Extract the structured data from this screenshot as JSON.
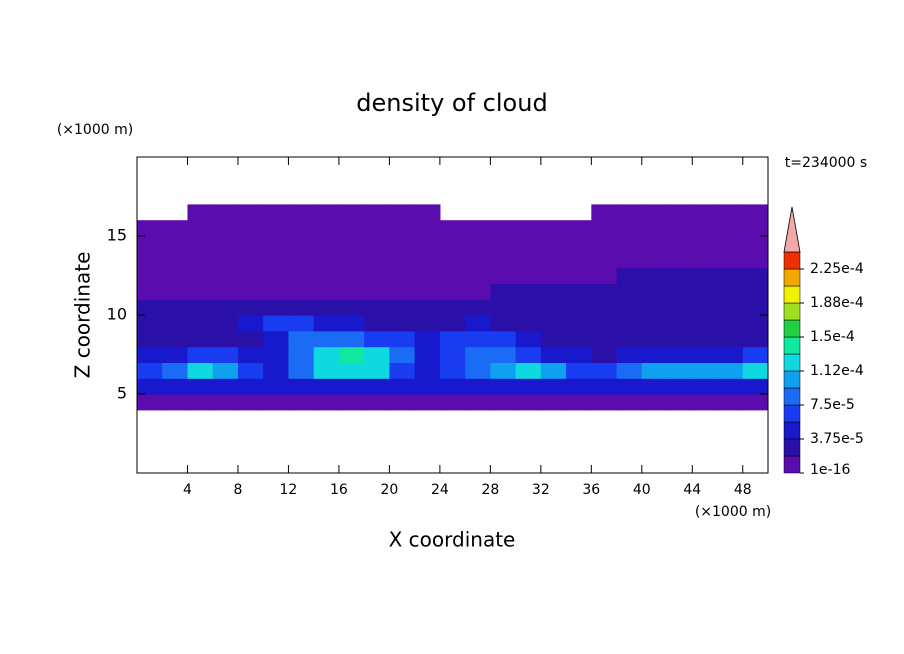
{
  "chart_data": {
    "type": "contour",
    "title": "density of cloud",
    "x_label": "X coordinate",
    "y_label": "Z coordinate",
    "x_unit": "(×1000 m)",
    "y_unit": "(×1000 m)",
    "annotation": "t=234000 s",
    "xlim": [
      0,
      50
    ],
    "ylim": [
      0,
      20
    ],
    "xticks": [
      4,
      8,
      12,
      16,
      20,
      24,
      28,
      32,
      36,
      40,
      44,
      48
    ],
    "yticks": [
      5,
      10,
      15
    ],
    "x": [
      1,
      3,
      5,
      7,
      9,
      11,
      13,
      15,
      17,
      19,
      21,
      23,
      25,
      27,
      29,
      31,
      33,
      35,
      37,
      39,
      41,
      43,
      45,
      47,
      49
    ],
    "z": [
      4.5,
      5.5,
      6.5,
      7.5,
      8.5,
      9.5,
      10.5,
      11.5,
      12.5,
      13.5,
      14.5,
      15.5,
      16.5
    ],
    "values": [
      [
        5e-06,
        5e-06,
        5e-06,
        5e-06,
        5e-06,
        5e-06,
        5e-06,
        5e-06,
        5e-06,
        5e-06,
        5e-06,
        5e-06,
        5e-06,
        5e-06,
        5e-06,
        5e-06,
        5e-06,
        5e-06,
        5e-06,
        5e-06,
        5e-06,
        5e-06,
        5e-06,
        5e-06,
        5e-06
      ],
      [
        4e-05,
        5e-05,
        5e-05,
        5e-05,
        4e-05,
        4e-05,
        5e-05,
        5e-05,
        5e-05,
        5e-05,
        4e-05,
        4e-05,
        4e-05,
        5e-05,
        5e-05,
        5e-05,
        5e-05,
        4e-05,
        4e-05,
        4e-05,
        5e-05,
        5e-05,
        5e-05,
        5e-05,
        5e-05
      ],
      [
        6e-05,
        9e-05,
        0.000115,
        0.00011,
        7e-05,
        5e-05,
        8e-05,
        0.00012,
        0.000125,
        0.000115,
        7e-05,
        5e-05,
        6e-05,
        8e-05,
        0.0001,
        0.000115,
        0.000105,
        6e-05,
        7e-05,
        9e-05,
        0.000105,
        0.00011,
        0.0001,
        0.000105,
        0.000115
      ],
      [
        4e-05,
        5e-05,
        7e-05,
        6e-05,
        4e-05,
        5e-05,
        9e-05,
        0.000115,
        0.00014,
        0.00013,
        9e-05,
        5e-05,
        6e-05,
        8e-05,
        9e-05,
        7e-05,
        5e-05,
        4e-05,
        3e-05,
        4e-05,
        5e-05,
        4e-05,
        4e-05,
        5e-05,
        7e-05
      ],
      [
        2.5e-05,
        3e-05,
        3e-05,
        3e-05,
        3e-05,
        5e-05,
        8e-05,
        9e-05,
        8e-05,
        7e-05,
        6e-05,
        4e-05,
        6e-05,
        7e-05,
        6e-05,
        4e-05,
        3e-05,
        2.5e-05,
        2.5e-05,
        2.5e-05,
        3e-05,
        2.5e-05,
        2.5e-05,
        3e-05,
        3e-05
      ],
      [
        2e-05,
        2e-05,
        2.5e-05,
        3e-05,
        4e-05,
        6e-05,
        6e-05,
        5e-05,
        4e-05,
        3e-05,
        3e-05,
        2.5e-05,
        3e-05,
        4e-05,
        3e-05,
        2.5e-05,
        2e-05,
        2e-05,
        2e-05,
        2e-05,
        2.5e-05,
        2.5e-05,
        2.5e-05,
        2.5e-05,
        2.5e-05
      ],
      [
        2e-05,
        2e-05,
        2e-05,
        2e-05,
        2e-05,
        2e-05,
        2e-05,
        2e-05,
        2e-05,
        2e-05,
        2e-05,
        2e-05,
        2e-05,
        2e-05,
        2e-05,
        2e-05,
        2e-05,
        2e-05,
        2e-05,
        2e-05,
        2e-05,
        2e-05,
        2e-05,
        2e-05,
        2e-05
      ],
      [
        1e-05,
        1e-05,
        1e-05,
        1e-05,
        1e-05,
        1e-05,
        1e-05,
        1e-05,
        1e-05,
        1e-05,
        1e-05,
        1e-05,
        1e-05,
        1e-05,
        2e-05,
        2e-05,
        2e-05,
        2e-05,
        2e-05,
        2e-05,
        2e-05,
        2e-05,
        2e-05,
        2e-05,
        2e-05
      ],
      [
        5e-06,
        5e-06,
        5e-06,
        5e-06,
        5e-06,
        5e-06,
        5e-06,
        5e-06,
        5e-06,
        5e-06,
        5e-06,
        5e-06,
        5e-06,
        5e-06,
        5e-06,
        5e-06,
        5e-06,
        5e-06,
        5e-06,
        2e-05,
        2e-05,
        2e-05,
        2e-05,
        2e-05,
        2e-05
      ],
      [
        5e-06,
        5e-06,
        5e-06,
        5e-06,
        5e-06,
        5e-06,
        5e-06,
        5e-06,
        5e-06,
        5e-06,
        5e-06,
        5e-06,
        5e-06,
        5e-06,
        5e-06,
        5e-06,
        5e-06,
        5e-06,
        5e-06,
        5e-06,
        5e-06,
        5e-06,
        5e-06,
        5e-06,
        5e-06
      ],
      [
        5e-06,
        5e-06,
        5e-06,
        5e-06,
        5e-06,
        5e-06,
        5e-06,
        5e-06,
        5e-06,
        5e-06,
        5e-06,
        5e-06,
        5e-06,
        5e-06,
        5e-06,
        5e-06,
        5e-06,
        5e-06,
        5e-06,
        5e-06,
        5e-06,
        5e-06,
        5e-06,
        5e-06,
        5e-06
      ],
      [
        5e-06,
        5e-06,
        5e-06,
        5e-06,
        5e-06,
        5e-06,
        5e-06,
        5e-06,
        5e-06,
        5e-06,
        5e-06,
        5e-06,
        5e-06,
        5e-06,
        5e-06,
        5e-06,
        5e-06,
        5e-06,
        5e-06,
        5e-06,
        5e-06,
        5e-06,
        5e-06,
        5e-06,
        5e-06
      ],
      [
        null,
        null,
        5e-06,
        5e-06,
        5e-06,
        5e-06,
        5e-06,
        5e-06,
        5e-06,
        5e-06,
        5e-06,
        5e-06,
        null,
        null,
        null,
        null,
        null,
        null,
        5e-06,
        5e-06,
        5e-06,
        5e-06,
        5e-06,
        5e-06,
        5e-06
      ]
    ],
    "levels": [
      1e-16,
      1.875e-05,
      3.75e-05,
      5.625e-05,
      7.5e-05,
      9.375e-05,
      0.0001125,
      0.00013125,
      0.00015,
      0.00016875,
      0.0001875,
      0.00020625,
      0.000225
    ],
    "colors": [
      "#5a0caf",
      "#2a10a8",
      "#1818cc",
      "#1a3cf0",
      "#1a6cf5",
      "#10a0f0",
      "#10d8e0",
      "#10e8a0",
      "#20d040",
      "#a0e020",
      "#f0f000",
      "#f0a800",
      "#f03000"
    ],
    "extend_color": "#f5a8a8",
    "colorbar_ticks": [
      {
        "value": 1e-16,
        "label": "1e-16"
      },
      {
        "value": 3.75e-05,
        "label": "3.75e-5"
      },
      {
        "value": 7.5e-05,
        "label": "7.5e-5"
      },
      {
        "value": 0.0001125,
        "label": "1.12e-4"
      },
      {
        "value": 0.00015,
        "label": "1.5e-4"
      },
      {
        "value": 0.0001875,
        "label": "1.88e-4"
      },
      {
        "value": 0.000225,
        "label": "2.25e-4"
      }
    ]
  }
}
